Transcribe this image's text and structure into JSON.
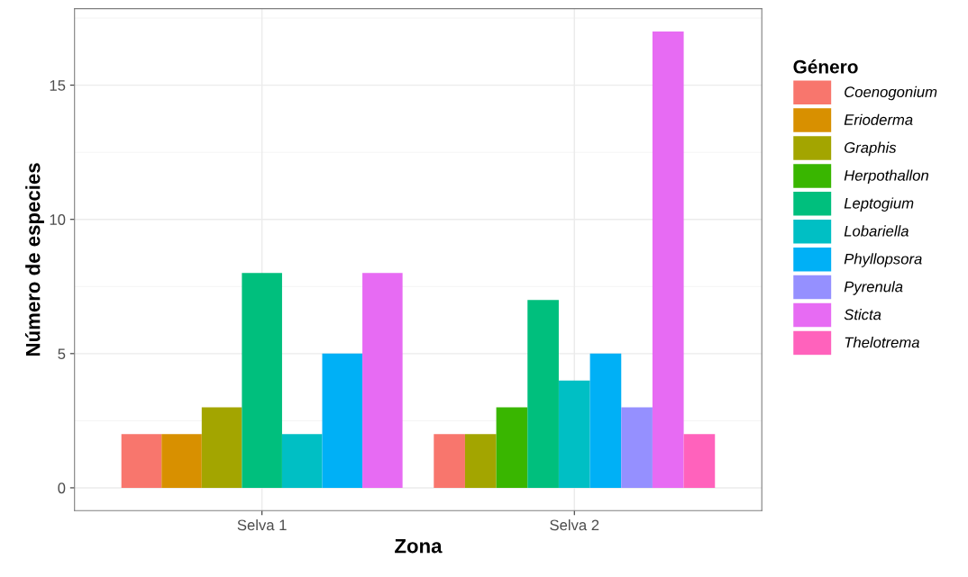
{
  "chart_data": {
    "type": "bar",
    "xlabel": "Zona",
    "ylabel": "Número de especies",
    "legend_title": "Género",
    "categories": [
      "Selva 1",
      "Selva 2"
    ],
    "series": [
      {
        "name": "Coenogonium",
        "color": "#f8766d",
        "values": [
          2,
          2
        ]
      },
      {
        "name": "Erioderma",
        "color": "#d89000",
        "values": [
          2,
          null
        ]
      },
      {
        "name": "Graphis",
        "color": "#a3a500",
        "values": [
          3,
          2
        ]
      },
      {
        "name": "Herpothallon",
        "color": "#39b600",
        "values": [
          null,
          3
        ]
      },
      {
        "name": "Leptogium",
        "color": "#00bf7d",
        "values": [
          8,
          7
        ]
      },
      {
        "name": "Lobariella",
        "color": "#00bfc4",
        "values": [
          2,
          4
        ]
      },
      {
        "name": "Phyllopsora",
        "color": "#00b0f6",
        "values": [
          5,
          5
        ]
      },
      {
        "name": "Pyrenula",
        "color": "#9590ff",
        "values": [
          null,
          3
        ]
      },
      {
        "name": "Sticta",
        "color": "#e76bf3",
        "values": [
          8,
          17
        ]
      },
      {
        "name": "Thelotrema",
        "color": "#ff62bc",
        "values": [
          null,
          2
        ]
      }
    ],
    "ylim": [
      -0.85,
      17.85
    ],
    "yticks": [
      0,
      5,
      10,
      15
    ],
    "grid": true,
    "legend": "right"
  }
}
